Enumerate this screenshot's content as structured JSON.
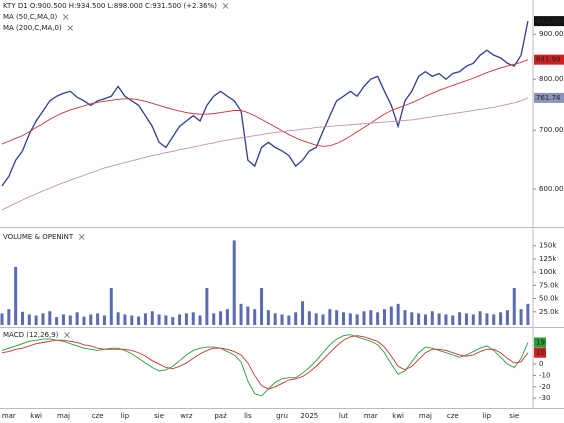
{
  "chart_data": [
    {
      "type": "line",
      "title": "KTY D1 O:900.500 H:934.500 L:898.000 C:931.500 (+2.36%)",
      "log_scale": true,
      "ylim": [
        546,
        959
      ],
      "yticks": [
        {
          "value": 600,
          "label": "600.000"
        },
        {
          "value": 700,
          "label": "700.000"
        },
        {
          "value": 800,
          "label": "800.000"
        },
        {
          "value": 900,
          "label": "900.000"
        }
      ],
      "series": [
        {
          "color": "#2b3f8f",
          "values": [
            605,
            620,
            647,
            663,
            693,
            717,
            736,
            756,
            765,
            771,
            775,
            763,
            756,
            747,
            756,
            760,
            765,
            785,
            765,
            756,
            747,
            727,
            707,
            678,
            669,
            688,
            707,
            717,
            727,
            717,
            747,
            765,
            775,
            765,
            756,
            736,
            647,
            637,
            669,
            678,
            669,
            663,
            655,
            637,
            647,
            663,
            669,
            698,
            727,
            756,
            765,
            775,
            765,
            785,
            800,
            806,
            775,
            747,
            707,
            756,
            775,
            806,
            816,
            806,
            812,
            800,
            812,
            816,
            828,
            834,
            852,
            863,
            852,
            846,
            834,
            828,
            852,
            931.5
          ]
        },
        {
          "name": "MA (50,C,MA,0)",
          "color": "#cc3333",
          "values": [
            675,
            680,
            685,
            690,
            697,
            705,
            712,
            720,
            727,
            733,
            738,
            742,
            746,
            750,
            753,
            755,
            757,
            759,
            760,
            760,
            758,
            755,
            751,
            747,
            743,
            739,
            736,
            733,
            731,
            730,
            730,
            731,
            733,
            735,
            737,
            737,
            733,
            727,
            720,
            713,
            706,
            699,
            692,
            686,
            681,
            677,
            673,
            671,
            672,
            676,
            682,
            689,
            697,
            705,
            713,
            722,
            730,
            737,
            742,
            747,
            752,
            758,
            765,
            771,
            777,
            782,
            787,
            792,
            797,
            802,
            808,
            814,
            819,
            824,
            828,
            832,
            836,
            841.99
          ]
        },
        {
          "name": "MA (200,C,MA,0)",
          "color": "#c88fb4",
          "values": [
            568,
            573,
            578,
            583,
            588,
            592,
            597,
            601,
            606,
            610,
            614,
            618,
            622,
            626,
            630,
            634,
            637,
            640,
            643,
            646,
            649,
            652,
            655,
            657,
            660,
            662,
            665,
            667,
            670,
            672,
            675,
            677,
            680,
            682,
            684,
            686,
            688,
            690,
            692,
            694,
            696,
            697,
            699,
            700,
            702,
            703,
            705,
            706,
            707,
            708,
            709,
            710,
            711,
            712,
            713,
            714,
            715,
            716,
            717,
            718,
            719,
            721,
            723,
            725,
            727,
            729,
            731,
            733,
            735,
            737,
            739,
            741,
            743,
            746,
            749,
            752,
            756,
            761.74
          ]
        }
      ],
      "tags": [
        {
          "value": 931.5,
          "label": "931.500",
          "color": "#111111"
        },
        {
          "value": 841.99,
          "label": "841.99",
          "color": "#cc2222"
        },
        {
          "value": 761.74,
          "label": "761.74",
          "color": "#8a93b8"
        }
      ]
    },
    {
      "type": "bar",
      "title": "VOLUME & OPENINT",
      "color": "#5a6bb0",
      "ylim": [
        0,
        176000
      ],
      "yticks": [
        {
          "value": 25000,
          "label": "25.0k"
        },
        {
          "value": 50000,
          "label": "50.0k"
        },
        {
          "value": 75000,
          "label": "75.0k"
        },
        {
          "value": 100000,
          "label": "100k"
        },
        {
          "value": 125000,
          "label": "125k"
        },
        {
          "value": 150000,
          "label": "150k"
        }
      ],
      "values": [
        22000,
        30000,
        110000,
        25000,
        20000,
        18000,
        22000,
        26000,
        15000,
        20000,
        18000,
        24000,
        16000,
        20000,
        22000,
        18000,
        70000,
        24000,
        20000,
        18000,
        16000,
        22000,
        26000,
        20000,
        18000,
        15000,
        20000,
        22000,
        24000,
        18000,
        70000,
        22000,
        26000,
        30000,
        160000,
        40000,
        35000,
        30000,
        70000,
        28000,
        22000,
        20000,
        18000,
        24000,
        45000,
        26000,
        22000,
        20000,
        30000,
        28000,
        24000,
        22000,
        20000,
        26000,
        28000,
        24000,
        30000,
        35000,
        40000,
        28000,
        24000,
        22000,
        20000,
        26000,
        22000,
        20000,
        18000,
        24000,
        22000,
        20000,
        26000,
        22000,
        20000,
        24000,
        28000,
        70000,
        30000,
        40000
      ]
    },
    {
      "type": "line",
      "title": "MACD (12,26,9)",
      "ylim": [
        -36,
        30
      ],
      "yticks": [
        -30,
        -20,
        -10,
        0
      ],
      "categories": [
        null,
        "mar",
        null,
        null,
        null,
        "kwi",
        null,
        null,
        null,
        "maj",
        null,
        null,
        null,
        null,
        "cze",
        null,
        null,
        null,
        "lip",
        null,
        null,
        null,
        null,
        "sie",
        null,
        null,
        null,
        "wrz",
        null,
        null,
        null,
        null,
        "paź",
        null,
        null,
        null,
        "lis",
        null,
        null,
        null,
        null,
        "gru",
        null,
        null,
        null,
        "2025",
        null,
        null,
        null,
        null,
        "lut",
        null,
        null,
        null,
        "mar",
        null,
        null,
        null,
        "kwi",
        null,
        null,
        null,
        "maj",
        null,
        null,
        null,
        "cze",
        null,
        null,
        null,
        null,
        "lip",
        null,
        null,
        null,
        "sie",
        null,
        null
      ],
      "series": [
        {
          "color": "#2a9d3a",
          "values": [
            12,
            14,
            16,
            18,
            20,
            21,
            22,
            22,
            21,
            20,
            18,
            16,
            14,
            13,
            12,
            13,
            14,
            14,
            12,
            9,
            5,
            1,
            -3,
            -6,
            -5,
            -2,
            3,
            8,
            12,
            14,
            15,
            15,
            14,
            11,
            8,
            2,
            -15,
            -26,
            -28,
            -22,
            -16,
            -13,
            -12,
            -12,
            -8,
            -3,
            3,
            10,
            17,
            22,
            25,
            26,
            24,
            22,
            20,
            17,
            10,
            0,
            -9,
            -6,
            2,
            10,
            15,
            14,
            12,
            10,
            8,
            6,
            8,
            11,
            14,
            16,
            12,
            6,
            0,
            -3,
            5,
            19
          ]
        },
        {
          "color": "#cc3333",
          "values": [
            10,
            11,
            13,
            14,
            16,
            18,
            19,
            20,
            21,
            21,
            20,
            19,
            17,
            16,
            14,
            13,
            13,
            13,
            13,
            12,
            10,
            7,
            3,
            0,
            -3,
            -4,
            -2,
            1,
            5,
            9,
            12,
            14,
            14,
            13,
            11,
            8,
            1,
            -10,
            -19,
            -22,
            -20,
            -17,
            -14,
            -13,
            -11,
            -7,
            -2,
            4,
            10,
            16,
            21,
            24,
            25,
            24,
            22,
            20,
            15,
            7,
            -2,
            -5,
            -2,
            4,
            10,
            13,
            13,
            12,
            10,
            8,
            7,
            8,
            11,
            13,
            13,
            10,
            5,
            1,
            2,
            10
          ]
        }
      ],
      "tags": [
        {
          "value": 19,
          "color": "#2a9d3a"
        },
        {
          "value": 10,
          "color": "#cc2222"
        }
      ]
    }
  ]
}
